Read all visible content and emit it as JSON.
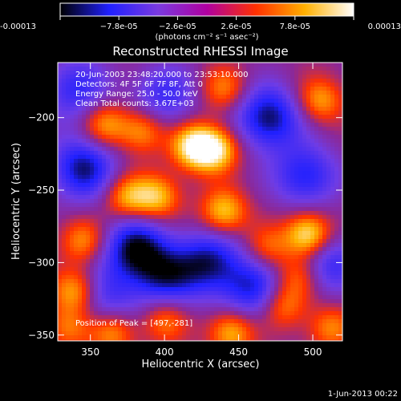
{
  "colorbar": {
    "tick_labels": [
      "-0.00013",
      "−7.8e-05",
      "−2.6e-05",
      "2.6e-05",
      "7.8e-05",
      "0.00013"
    ],
    "tick_values": [
      -0.00013,
      -7.8e-05,
      -2.6e-05,
      2.6e-05,
      7.8e-05,
      0.00013
    ],
    "range": [
      -0.00013,
      0.00013
    ],
    "units_label": "(photons cm⁻² s⁻¹ asec⁻²)",
    "colors": [
      "#000000",
      "#2020ff",
      "#7a3ae0",
      "#b000a0",
      "#ff3000",
      "#ffb000",
      "#ffffff"
    ]
  },
  "chart_data": {
    "type": "heatmap",
    "title": "Reconstructed RHESSI Image",
    "xlabel": "Heliocentric X (arcsec)",
    "ylabel": "Heliocentric Y (arcsec)",
    "xlim": [
      328,
      520
    ],
    "ylim": [
      -354,
      -162
    ],
    "xticks": [
      350,
      400,
      450,
      500
    ],
    "yticks": [
      -200,
      -250,
      -300,
      -350
    ],
    "annotations": [
      "20-Jun-2003 23:48:20.000 to 23:53:10.000",
      "Detectors: 4F 5F 6F 7F 8F, Att 0",
      "Energy Range: 25.0 - 50.0 keV",
      "Clean    Total counts: 3.67E+03"
    ],
    "peak_label": "Position of Peak = [497,-281]",
    "peak": {
      "x": 497,
      "y": -281
    },
    "hot_spots": [
      {
        "x": 497,
        "y": -281,
        "intensity": 1.0
      },
      {
        "x": 420,
        "y": -220,
        "intensity": 0.95
      },
      {
        "x": 435,
        "y": -222,
        "intensity": 0.8
      },
      {
        "x": 440,
        "y": -265,
        "intensity": 0.75
      },
      {
        "x": 395,
        "y": -255,
        "intensity": 0.7
      },
      {
        "x": 375,
        "y": -255,
        "intensity": 0.65
      },
      {
        "x": 360,
        "y": -205,
        "intensity": 0.6
      },
      {
        "x": 385,
        "y": -209,
        "intensity": 0.6
      },
      {
        "x": 505,
        "y": -188,
        "intensity": 0.6
      },
      {
        "x": 440,
        "y": -180,
        "intensity": 0.5
      },
      {
        "x": 340,
        "y": -320,
        "intensity": 0.7
      },
      {
        "x": 345,
        "y": -285,
        "intensity": 0.55
      },
      {
        "x": 480,
        "y": -330,
        "intensity": 0.55
      },
      {
        "x": 490,
        "y": -310,
        "intensity": 0.5
      },
      {
        "x": 445,
        "y": -348,
        "intensity": 0.7
      },
      {
        "x": 365,
        "y": -348,
        "intensity": 0.6
      },
      {
        "x": 400,
        "y": -340,
        "intensity": 0.5
      },
      {
        "x": 335,
        "y": -345,
        "intensity": 0.5
      },
      {
        "x": 470,
        "y": -290,
        "intensity": 0.45
      },
      {
        "x": 512,
        "y": -345,
        "intensity": 0.5
      }
    ],
    "cold_spots": [
      {
        "x": 470,
        "y": -200,
        "intensity": 0.9
      },
      {
        "x": 380,
        "y": -290,
        "intensity": 0.9
      },
      {
        "x": 430,
        "y": -300,
        "intensity": 0.8
      },
      {
        "x": 345,
        "y": -235,
        "intensity": 0.85
      },
      {
        "x": 340,
        "y": -180,
        "intensity": 0.6
      },
      {
        "x": 495,
        "y": -240,
        "intensity": 0.7
      },
      {
        "x": 400,
        "y": -185,
        "intensity": 0.55
      },
      {
        "x": 460,
        "y": -318,
        "intensity": 0.7
      },
      {
        "x": 510,
        "y": -300,
        "intensity": 0.6
      },
      {
        "x": 400,
        "y": -310,
        "intensity": 0.7
      },
      {
        "x": 360,
        "y": -325,
        "intensity": 0.5
      }
    ]
  },
  "footer": {
    "timestamp": "1-Jun-2013 00:22"
  }
}
